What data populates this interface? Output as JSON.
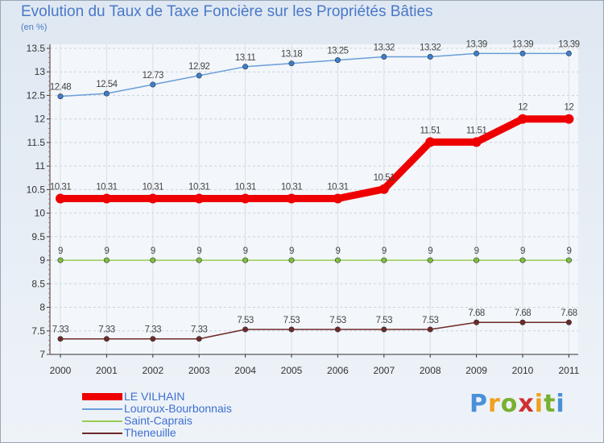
{
  "chart_data": {
    "type": "line",
    "title": "Evolution du Taux de Taxe Foncière sur les Propriétés Bâties",
    "subtitle": "(en %)",
    "categories": [
      "2000",
      "2001",
      "2002",
      "2003",
      "2004",
      "2005",
      "2006",
      "2007",
      "2008",
      "2009",
      "2010",
      "2011"
    ],
    "yticks": [
      "7",
      "7.5",
      "8",
      "8.5",
      "9",
      "9.5",
      "10",
      "10.5",
      "11",
      "11.5",
      "12",
      "12.5",
      "13",
      "13.5"
    ],
    "ylim": [
      7,
      13.5
    ],
    "series": [
      {
        "name": "Louroux-Bourbonnais",
        "color": "#6a9ed8",
        "dot": "#3a7fd0",
        "values": [
          12.48,
          12.54,
          12.73,
          12.92,
          13.11,
          13.18,
          13.25,
          13.32,
          13.32,
          13.39,
          13.39,
          13.39
        ],
        "labels": [
          "12.48",
          "12.54",
          "12.73",
          "12.92",
          "13.11",
          "13.18",
          "13.25",
          "13.32",
          "13.32",
          "13.39",
          "13.39",
          "13.39"
        ]
      },
      {
        "name": "LE VILHAIN",
        "color": "#ee0000",
        "dot": "#ee0000",
        "values": [
          10.31,
          10.31,
          10.31,
          10.31,
          10.31,
          10.31,
          10.31,
          10.51,
          11.51,
          11.51,
          12,
          12
        ],
        "labels": [
          "10.31",
          "10.31",
          "10.31",
          "10.31",
          "10.31",
          "10.31",
          "10.31",
          "10.51",
          "11.51",
          "11.51",
          "12",
          "12"
        ]
      },
      {
        "name": "Saint-Caprais",
        "color": "#99cc55",
        "dot": "#7cc040",
        "values": [
          9,
          9,
          9,
          9,
          9,
          9,
          9,
          9,
          9,
          9,
          9,
          9
        ],
        "labels": [
          "9",
          "9",
          "9",
          "9",
          "9",
          "9",
          "9",
          "9",
          "9",
          "9",
          "9",
          "9"
        ]
      },
      {
        "name": "Theneuille",
        "color": "#6e2a2a",
        "dot": "#6e2a2a",
        "values": [
          7.33,
          7.33,
          7.33,
          7.33,
          7.53,
          7.53,
          7.53,
          7.53,
          7.53,
          7.68,
          7.68,
          7.68
        ],
        "labels": [
          "7.33",
          "7.33",
          "7.33",
          "7.33",
          "7.53",
          "7.53",
          "7.53",
          "7.53",
          "7.53",
          "7.68",
          "7.68",
          "7.68"
        ]
      }
    ],
    "legend": [
      {
        "name": "LE VILHAIN",
        "color": "#ee0000",
        "thick": true
      },
      {
        "name": "Louroux-Bourbonnais",
        "color": "#6a9ed8",
        "thick": false
      },
      {
        "name": "Saint-Caprais",
        "color": "#99cc55",
        "thick": false
      },
      {
        "name": "Theneuille",
        "color": "#6e2a2a",
        "thick": false
      }
    ]
  },
  "logo": {
    "letters": [
      "P",
      "r",
      "o",
      "x",
      "i",
      "t",
      "i"
    ],
    "colors": [
      "#4a90d9",
      "#f0a020",
      "#78b030",
      "#d03030",
      "#f0a020",
      "#78b030",
      "#4a90d9"
    ]
  }
}
